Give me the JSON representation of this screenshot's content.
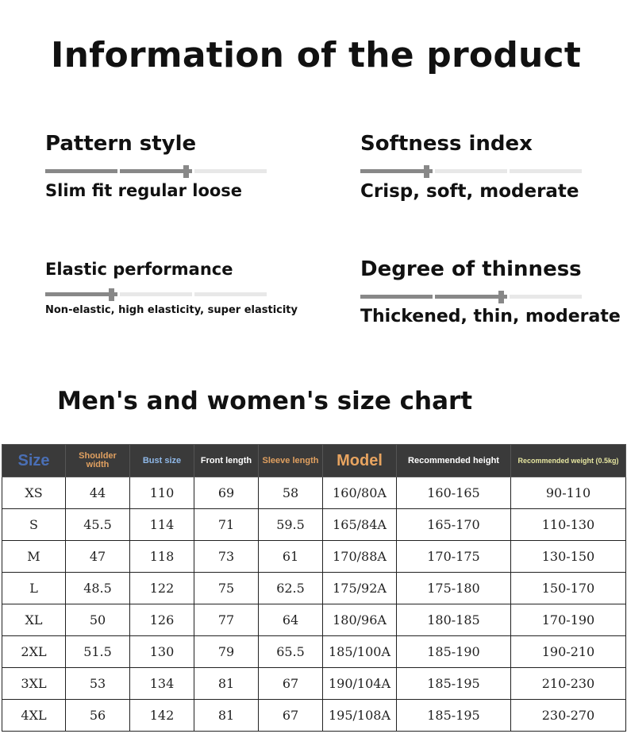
{
  "page_title": "Information of the product",
  "attributes": [
    {
      "label": "Pattern style",
      "value": "Slim fit regular loose",
      "level": 2
    },
    {
      "label": "Softness index",
      "value": "Crisp, soft, moderate",
      "level": 1
    },
    {
      "label": "Elastic performance",
      "value": "Non-elastic, high elasticity, super elasticity",
      "level": 1
    },
    {
      "label": "Degree of thinness",
      "value": "Thickened, thin, moderate",
      "level": 2
    }
  ],
  "size_chart": {
    "title": "Men's and women's size chart",
    "headers": [
      "Size",
      "Shoulder width",
      "Bust size",
      "Front length",
      "Sleeve length",
      "Model",
      "Recommended height",
      "Recommended weight (0.5kg)"
    ],
    "header_colors": [
      "#4a6fb5",
      "#e0a060",
      "#8fb8e8",
      "#ffffff",
      "#e0a060",
      "#e8a460",
      "#ffffff",
      "#e6e6a0"
    ],
    "rows": [
      [
        "XS",
        "44",
        "110",
        "69",
        "58",
        "160/80A",
        "160-165",
        "90-110"
      ],
      [
        "S",
        "45.5",
        "114",
        "71",
        "59.5",
        "165/84A",
        "165-170",
        "110-130"
      ],
      [
        "M",
        "47",
        "118",
        "73",
        "61",
        "170/88A",
        "170-175",
        "130-150"
      ],
      [
        "L",
        "48.5",
        "122",
        "75",
        "62.5",
        "175/92A",
        "175-180",
        "150-170"
      ],
      [
        "XL",
        "50",
        "126",
        "77",
        "64",
        "180/96A",
        "180-185",
        "170-190"
      ],
      [
        "2XL",
        "51.5",
        "130",
        "79",
        "65.5",
        "185/100A",
        "185-190",
        "190-210"
      ],
      [
        "3XL",
        "53",
        "134",
        "81",
        "67",
        "190/104A",
        "185-195",
        "210-230"
      ],
      [
        "4XL",
        "56",
        "142",
        "81",
        "67",
        "195/108A",
        "185-195",
        "230-270"
      ]
    ]
  }
}
